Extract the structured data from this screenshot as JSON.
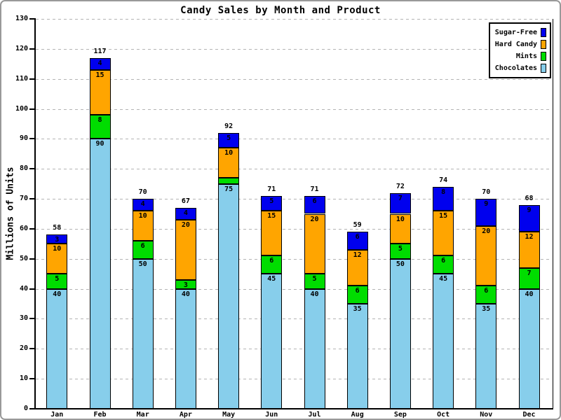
{
  "chart_data": {
    "type": "bar",
    "stacked": true,
    "title": "Candy Sales by Month and Product",
    "ylabel": "Millions of Units",
    "xlabel": "",
    "ylim": [
      0,
      130
    ],
    "ytick_step": 10,
    "grid": true,
    "legend_position": "top-right",
    "categories": [
      "Jan",
      "Feb",
      "Mar",
      "Apr",
      "May",
      "Jun",
      "Jul",
      "Aug",
      "Sep",
      "Oct",
      "Nov",
      "Dec"
    ],
    "series": [
      {
        "name": "Chocolates",
        "color": "#87CEEB",
        "values": [
          40,
          90,
          50,
          40,
          75,
          45,
          40,
          35,
          50,
          45,
          35,
          40
        ]
      },
      {
        "name": "Mints",
        "color": "#00DD00",
        "values": [
          5,
          8,
          6,
          3,
          2,
          6,
          5,
          6,
          5,
          6,
          6,
          7
        ]
      },
      {
        "name": "Hard Candy",
        "color": "#FFA500",
        "values": [
          10,
          15,
          10,
          20,
          10,
          15,
          20,
          12,
          10,
          15,
          20,
          12
        ]
      },
      {
        "name": "Sugar-Free",
        "color": "#0000EE",
        "values": [
          3,
          4,
          4,
          4,
          5,
          5,
          6,
          6,
          7,
          8,
          9,
          9
        ]
      }
    ],
    "totals": [
      58,
      117,
      70,
      67,
      92,
      71,
      71,
      59,
      72,
      74,
      70,
      68
    ],
    "legend_labels_top_to_bottom": [
      "Sugar-Free",
      "Hard Candy",
      "Mints",
      "Chocolates"
    ]
  }
}
